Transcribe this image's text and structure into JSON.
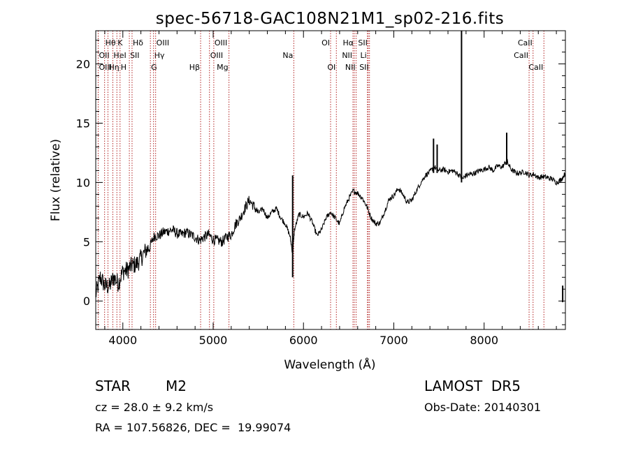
{
  "chart_data": {
    "type": "line",
    "title": "spec-56718-GAC108N21M1_sp02-216.fits",
    "xlabel": "Wavelength (Å)",
    "ylabel": "Flux (relative)",
    "xlim": [
      3700,
      8900
    ],
    "ylim": [
      -2.4,
      22.8
    ],
    "x_ticks": [
      4000,
      5000,
      6000,
      7000,
      8000
    ],
    "y_ticks": [
      0,
      5,
      10,
      15,
      20
    ],
    "grid": false,
    "line_color": "#000000",
    "marker_color": "#b22222",
    "spectrum_anchors": [
      [
        3700,
        0.5
      ],
      [
        3750,
        2.0
      ],
      [
        3800,
        1.3
      ],
      [
        3850,
        1.2
      ],
      [
        3900,
        2.0
      ],
      [
        3950,
        1.5
      ],
      [
        4000,
        2.5
      ],
      [
        4050,
        2.6
      ],
      [
        4100,
        3.0
      ],
      [
        4150,
        3.1
      ],
      [
        4200,
        3.6
      ],
      [
        4250,
        4.2
      ],
      [
        4300,
        4.6
      ],
      [
        4350,
        5.5
      ],
      [
        4400,
        5.5
      ],
      [
        4450,
        5.8
      ],
      [
        4500,
        5.9
      ],
      [
        4550,
        6.0
      ],
      [
        4600,
        5.7
      ],
      [
        4650,
        5.6
      ],
      [
        4700,
        5.8
      ],
      [
        4750,
        5.6
      ],
      [
        4800,
        5.4
      ],
      [
        4850,
        5.1
      ],
      [
        4900,
        5.4
      ],
      [
        4950,
        5.6
      ],
      [
        5000,
        5.2
      ],
      [
        5050,
        5.1
      ],
      [
        5100,
        5.0
      ],
      [
        5150,
        5.4
      ],
      [
        5200,
        5.6
      ],
      [
        5250,
        6.5
      ],
      [
        5300,
        7.0
      ],
      [
        5350,
        7.8
      ],
      [
        5400,
        8.5
      ],
      [
        5450,
        8.0
      ],
      [
        5500,
        7.4
      ],
      [
        5550,
        7.8
      ],
      [
        5600,
        7.0
      ],
      [
        5650,
        7.5
      ],
      [
        5700,
        7.8
      ],
      [
        5750,
        7.0
      ],
      [
        5800,
        6.5
      ],
      [
        5850,
        5.5
      ],
      [
        5880,
        4.0
      ],
      [
        5900,
        6.0
      ],
      [
        5950,
        7.3
      ],
      [
        6000,
        7.1
      ],
      [
        6050,
        7.4
      ],
      [
        6100,
        6.6
      ],
      [
        6150,
        5.5
      ],
      [
        6200,
        6.0
      ],
      [
        6250,
        7.0
      ],
      [
        6300,
        7.5
      ],
      [
        6350,
        7.0
      ],
      [
        6400,
        6.5
      ],
      [
        6450,
        7.8
      ],
      [
        6500,
        8.6
      ],
      [
        6550,
        9.3
      ],
      [
        6600,
        9.1
      ],
      [
        6650,
        8.7
      ],
      [
        6700,
        8.0
      ],
      [
        6750,
        7.0
      ],
      [
        6800,
        6.5
      ],
      [
        6850,
        6.6
      ],
      [
        6900,
        7.6
      ],
      [
        6950,
        8.6
      ],
      [
        7000,
        8.9
      ],
      [
        7050,
        9.5
      ],
      [
        7100,
        9.0
      ],
      [
        7150,
        8.3
      ],
      [
        7200,
        8.5
      ],
      [
        7250,
        9.3
      ],
      [
        7300,
        10.0
      ],
      [
        7350,
        10.6
      ],
      [
        7400,
        10.9
      ],
      [
        7450,
        11.3
      ],
      [
        7500,
        11.0
      ],
      [
        7550,
        11.1
      ],
      [
        7600,
        10.9
      ],
      [
        7650,
        11.0
      ],
      [
        7700,
        10.8
      ],
      [
        7760,
        10.3
      ],
      [
        7800,
        10.6
      ],
      [
        7850,
        10.7
      ],
      [
        7900,
        10.8
      ],
      [
        7950,
        11.0
      ],
      [
        8000,
        11.1
      ],
      [
        8050,
        11.3
      ],
      [
        8100,
        11.0
      ],
      [
        8150,
        11.4
      ],
      [
        8200,
        11.3
      ],
      [
        8250,
        11.8
      ],
      [
        8300,
        11.1
      ],
      [
        8350,
        10.8
      ],
      [
        8400,
        10.8
      ],
      [
        8450,
        10.9
      ],
      [
        8500,
        10.6
      ],
      [
        8550,
        10.7
      ],
      [
        8600,
        10.4
      ],
      [
        8650,
        10.5
      ],
      [
        8700,
        10.4
      ],
      [
        8750,
        10.3
      ],
      [
        8800,
        10.0
      ],
      [
        8850,
        10.2
      ],
      [
        8900,
        10.8
      ]
    ],
    "spikes": [
      [
        5880,
        10.6,
        2.0
      ],
      [
        7750,
        23.0,
        10.0
      ],
      [
        8250,
        14.2,
        11.5
      ],
      [
        7440,
        13.7,
        10.8
      ],
      [
        7480,
        13.2,
        10.8
      ],
      [
        8870,
        1.3,
        -0.1
      ]
    ],
    "line_markers": [
      {
        "label": "Hθ",
        "wavelength": 3798,
        "row": 1,
        "side": "right"
      },
      {
        "label": "OII",
        "wavelength": 3727,
        "row": 2,
        "side": "right"
      },
      {
        "label": "OIII",
        "wavelength": 3727,
        "row": 3,
        "side": "right"
      },
      {
        "label": "Hη",
        "wavelength": 3835,
        "row": 3,
        "side": "right"
      },
      {
        "label": "HeI",
        "wavelength": 3889,
        "row": 2,
        "side": "right"
      },
      {
        "label": "K",
        "wavelength": 3934,
        "row": 1,
        "side": "right"
      },
      {
        "label": "H",
        "wavelength": 3969,
        "row": 3,
        "side": "right"
      },
      {
        "label": "SII",
        "wavelength": 4072,
        "row": 2,
        "side": "right"
      },
      {
        "label": "Hδ",
        "wavelength": 4102,
        "row": 1,
        "side": "right"
      },
      {
        "label": "G",
        "wavelength": 4305,
        "row": 3,
        "side": "right"
      },
      {
        "label": "Hγ",
        "wavelength": 4340,
        "row": 2,
        "side": "right"
      },
      {
        "label": "OIII",
        "wavelength": 4363,
        "row": 1,
        "side": "right"
      },
      {
        "label": "Hβ",
        "wavelength": 4861,
        "row": 3,
        "side": "left"
      },
      {
        "label": "OIII",
        "wavelength": 4959,
        "row": 2,
        "side": "right"
      },
      {
        "label": "OIII",
        "wavelength": 5007,
        "row": 1,
        "side": "right"
      },
      {
        "label": "Mg",
        "wavelength": 5175,
        "row": 3,
        "side": "left"
      },
      {
        "label": "Na",
        "wavelength": 5893,
        "row": 2,
        "side": "left"
      },
      {
        "label": "OI",
        "wavelength": 6300,
        "row": 1,
        "side": "left"
      },
      {
        "label": "OI",
        "wavelength": 6364,
        "row": 3,
        "side": "left"
      },
      {
        "label": "NII",
        "wavelength": 6548,
        "row": 2,
        "side": "left"
      },
      {
        "label": "Hα",
        "wavelength": 6563,
        "row": 1,
        "side": "left"
      },
      {
        "label": "NII",
        "wavelength": 6583,
        "row": 3,
        "side": "left"
      },
      {
        "label": "SII",
        "wavelength": 6717,
        "row": 1,
        "side": "left"
      },
      {
        "label": "Li",
        "wavelength": 6708,
        "row": 2,
        "side": "left"
      },
      {
        "label": "SII",
        "wavelength": 6731,
        "row": 3,
        "side": "left"
      },
      {
        "label": "CaII",
        "wavelength": 8498,
        "row": 2,
        "side": "left"
      },
      {
        "label": "CaII",
        "wavelength": 8542,
        "row": 1,
        "side": "left"
      },
      {
        "label": "CaII",
        "wavelength": 8662,
        "row": 3,
        "side": "left"
      }
    ]
  },
  "info": {
    "object_class": "STAR",
    "subclass": "M2",
    "cz": "cz = 28.0 ± 9.2 km/s",
    "coords": "RA = 107.56826, DEC =  19.99074",
    "survey": "LAMOST  DR5",
    "obs_date": "Obs-Date: 20140301"
  }
}
